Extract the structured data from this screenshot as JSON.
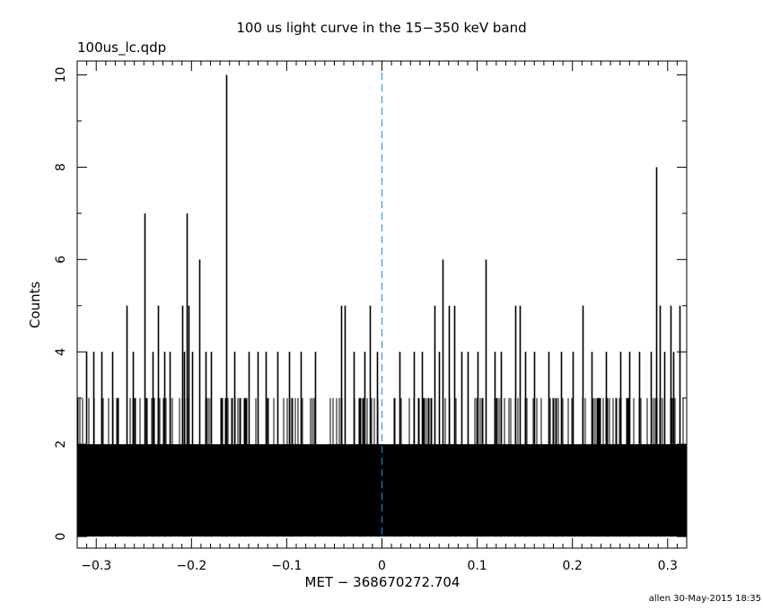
{
  "header": {
    "title": "100 us light curve in the 15−350 keV band",
    "file_name": "100us_lc.qdp"
  },
  "footer": {
    "stamp": "allen 30-May-2015 18:35"
  },
  "chart_data": {
    "type": "histogram",
    "title": "100 us light curve in the 15−350 keV band",
    "xlabel": "MET − 368670272.704",
    "ylabel": "Counts",
    "xlim": [
      -0.32,
      0.32
    ],
    "ylim": [
      -0.25,
      10.3
    ],
    "bin_width": 0.0001,
    "x_ticks": [
      -0.3,
      -0.2,
      -0.1,
      0,
      0.1,
      0.2,
      0.3
    ],
    "x_tick_labels": [
      "−0.3",
      "−0.2",
      "−0.1",
      "0",
      "0.1",
      "0.2",
      "0.3"
    ],
    "y_ticks": [
      0,
      2,
      4,
      6,
      8,
      10
    ],
    "y_tick_labels": [
      "0",
      "2",
      "4",
      "6",
      "8",
      "10"
    ],
    "trigger_marker_x": 0,
    "colors": {
      "data": "#000000",
      "marker": "#1a8fd0"
    },
    "baseline_fill_counts": 2,
    "notable_peaks": [
      {
        "x": -0.311,
        "y": 4
      },
      {
        "x": -0.303,
        "y": 4
      },
      {
        "x": -0.295,
        "y": 4
      },
      {
        "x": -0.283,
        "y": 4
      },
      {
        "x": -0.268,
        "y": 5
      },
      {
        "x": -0.262,
        "y": 4
      },
      {
        "x": -0.249,
        "y": 7
      },
      {
        "x": -0.241,
        "y": 4
      },
      {
        "x": -0.235,
        "y": 5
      },
      {
        "x": -0.229,
        "y": 4
      },
      {
        "x": -0.223,
        "y": 4
      },
      {
        "x": -0.21,
        "y": 5
      },
      {
        "x": -0.208,
        "y": 4
      },
      {
        "x": -0.205,
        "y": 7
      },
      {
        "x": -0.203,
        "y": 5
      },
      {
        "x": -0.199,
        "y": 4
      },
      {
        "x": -0.192,
        "y": 6
      },
      {
        "x": -0.185,
        "y": 4
      },
      {
        "x": -0.18,
        "y": 4
      },
      {
        "x": -0.164,
        "y": 10
      },
      {
        "x": -0.155,
        "y": 4
      },
      {
        "x": -0.14,
        "y": 4
      },
      {
        "x": -0.131,
        "y": 4
      },
      {
        "x": -0.122,
        "y": 4
      },
      {
        "x": -0.11,
        "y": 4
      },
      {
        "x": -0.098,
        "y": 4
      },
      {
        "x": -0.085,
        "y": 4
      },
      {
        "x": -0.07,
        "y": 4
      },
      {
        "x": -0.043,
        "y": 5
      },
      {
        "x": -0.039,
        "y": 5
      },
      {
        "x": -0.03,
        "y": 4
      },
      {
        "x": -0.018,
        "y": 4
      },
      {
        "x": -0.013,
        "y": 5
      },
      {
        "x": -0.005,
        "y": 4
      },
      {
        "x": 0.018,
        "y": 4
      },
      {
        "x": 0.033,
        "y": 4
      },
      {
        "x": 0.042,
        "y": 4
      },
      {
        "x": 0.055,
        "y": 5
      },
      {
        "x": 0.06,
        "y": 4
      },
      {
        "x": 0.064,
        "y": 6
      },
      {
        "x": 0.07,
        "y": 5
      },
      {
        "x": 0.076,
        "y": 5
      },
      {
        "x": 0.083,
        "y": 4
      },
      {
        "x": 0.09,
        "y": 4
      },
      {
        "x": 0.1,
        "y": 4
      },
      {
        "x": 0.109,
        "y": 6
      },
      {
        "x": 0.118,
        "y": 4
      },
      {
        "x": 0.125,
        "y": 4
      },
      {
        "x": 0.14,
        "y": 5
      },
      {
        "x": 0.145,
        "y": 5
      },
      {
        "x": 0.15,
        "y": 4
      },
      {
        "x": 0.16,
        "y": 4
      },
      {
        "x": 0.175,
        "y": 4
      },
      {
        "x": 0.188,
        "y": 4
      },
      {
        "x": 0.2,
        "y": 4
      },
      {
        "x": 0.211,
        "y": 5
      },
      {
        "x": 0.22,
        "y": 4
      },
      {
        "x": 0.235,
        "y": 4
      },
      {
        "x": 0.25,
        "y": 4
      },
      {
        "x": 0.26,
        "y": 4
      },
      {
        "x": 0.27,
        "y": 4
      },
      {
        "x": 0.282,
        "y": 4
      },
      {
        "x": 0.288,
        "y": 8
      },
      {
        "x": 0.292,
        "y": 5
      },
      {
        "x": 0.296,
        "y": 4
      },
      {
        "x": 0.303,
        "y": 5
      },
      {
        "x": 0.306,
        "y": 4
      },
      {
        "x": 0.312,
        "y": 5
      }
    ]
  }
}
